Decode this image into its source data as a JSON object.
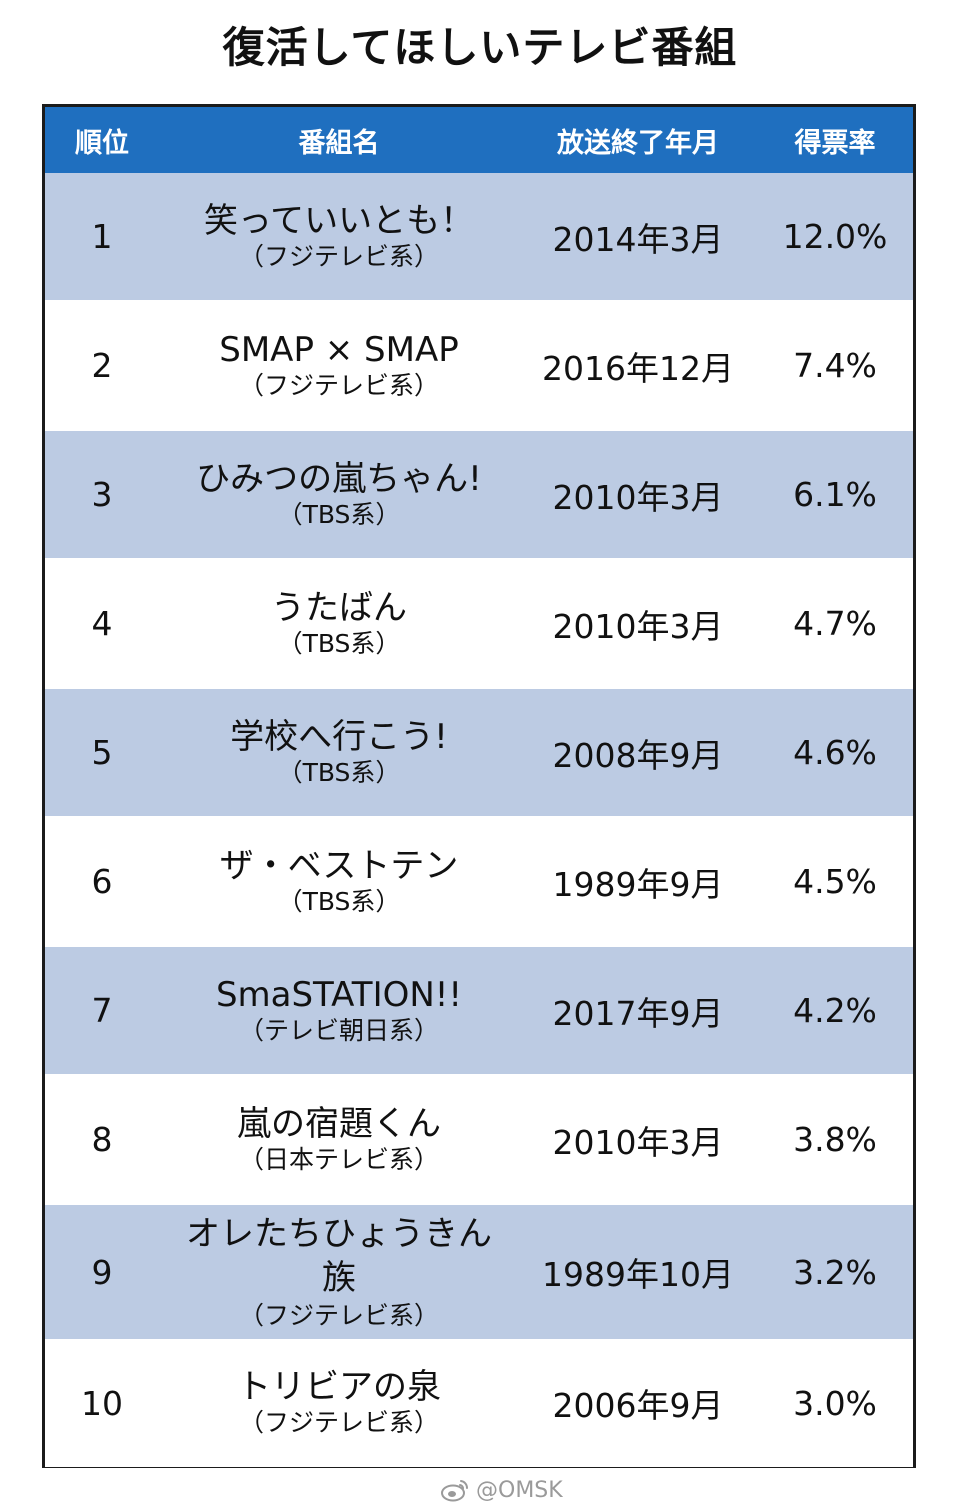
{
  "title": "復活してほしいテレビ番組",
  "columns": {
    "rank": "順位",
    "program": "番組名",
    "end_date": "放送終了年月",
    "share": "得票率"
  },
  "rows": [
    {
      "rank": "1",
      "name": "笑っていいとも！",
      "network": "（フジテレビ系）",
      "end": "2014年3月",
      "share": "12.0%"
    },
    {
      "rank": "2",
      "name": "SMAP × SMAP",
      "network": "（フジテレビ系）",
      "end": "2016年12月",
      "share": "7.4%"
    },
    {
      "rank": "3",
      "name": "ひみつの嵐ちゃん!",
      "network": "（TBS系）",
      "end": "2010年3月",
      "share": "6.1%"
    },
    {
      "rank": "4",
      "name": "うたばん",
      "network": "（TBS系）",
      "end": "2010年3月",
      "share": "4.7%"
    },
    {
      "rank": "5",
      "name": "学校へ行こう!",
      "network": "（TBS系）",
      "end": "2008年9月",
      "share": "4.6%"
    },
    {
      "rank": "6",
      "name": "ザ・ベストテン",
      "network": "（TBS系）",
      "end": "1989年9月",
      "share": "4.5%"
    },
    {
      "rank": "7",
      "name": "SmaSTATION!!",
      "network": "（テレビ朝日系）",
      "end": "2017年9月",
      "share": "4.2%"
    },
    {
      "rank": "8",
      "name": "嵐の宿題くん",
      "network": "（日本テレビ系）",
      "end": "2010年3月",
      "share": "3.8%"
    },
    {
      "rank": "9",
      "name": "オレたちひょうきん族",
      "network": "（フジテレビ系）",
      "end": "1989年10月",
      "share": "3.2%"
    },
    {
      "rank": "10",
      "name": "トリビアの泉",
      "network": "（フジテレビ系）",
      "end": "2006年9月",
      "share": "3.0%"
    }
  ],
  "watermark": {
    "text": "@OMSK",
    "icon": "weibo-icon"
  },
  "colors": {
    "header_bg": "#1f6fbf",
    "row_alt_bg": "#bccbe3",
    "row_bg": "#ffffff"
  }
}
